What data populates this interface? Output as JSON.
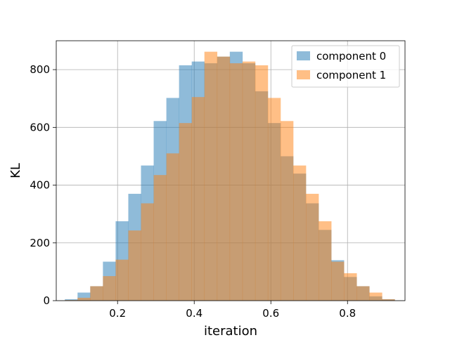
{
  "chart_data": {
    "type": "bar",
    "title": "",
    "xlabel": "iteration",
    "ylabel": "KL",
    "xlim": [
      0.04,
      0.95
    ],
    "ylim": [
      0,
      900
    ],
    "xticks": [
      "0.2",
      "0.4",
      "0.6",
      "0.8"
    ],
    "yticks": [
      "0",
      "200",
      "400",
      "600",
      "800"
    ],
    "grid": true,
    "legend_position": "top-right",
    "bin_edges": [
      0.0625,
      0.0956,
      0.1287,
      0.1618,
      0.1949,
      0.228,
      0.2611,
      0.2942,
      0.3273,
      0.3604,
      0.3935,
      0.4266,
      0.4597,
      0.4928,
      0.5259,
      0.559,
      0.5921,
      0.6252,
      0.6583,
      0.6914,
      0.7245,
      0.7576,
      0.7907,
      0.8238,
      0.8569,
      0.89,
      0.9231
    ],
    "series": [
      {
        "name": "component 0",
        "color": "#1f77b4",
        "values": [
          5,
          28,
          50,
          135,
          275,
          370,
          468,
          622,
          702,
          815,
          828,
          822,
          845,
          862,
          822,
          725,
          615,
          500,
          440,
          337,
          245,
          140,
          82,
          50,
          15,
          5
        ]
      },
      {
        "name": "component 1",
        "color": "#ff7f0e",
        "values": [
          2,
          10,
          50,
          85,
          142,
          243,
          337,
          435,
          510,
          615,
          705,
          862,
          845,
          822,
          828,
          815,
          702,
          622,
          468,
          370,
          275,
          135,
          95,
          50,
          28,
          5
        ]
      }
    ]
  }
}
